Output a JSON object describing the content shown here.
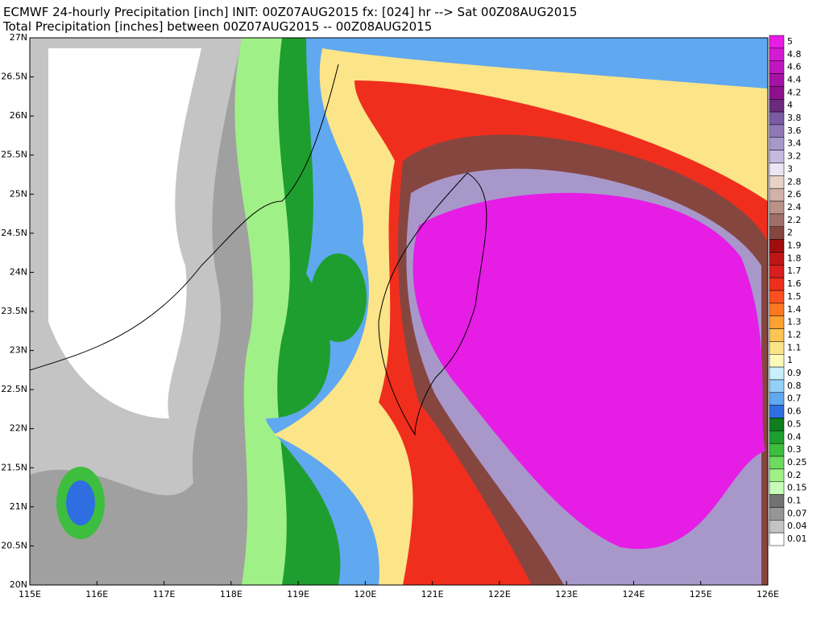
{
  "header": {
    "title": "ECMWF 24-hourly Precipitation [inch] INIT: 00Z07AUG2015 fx: [024] hr --> Sat 00Z08AUG2015",
    "subtitle": "Total Precipitation [inches] between 00Z07AUG2015 -- 00Z08AUG2015"
  },
  "map": {
    "lat_labels": [
      "27N",
      "26.5N",
      "26N",
      "25.5N",
      "25N",
      "24.5N",
      "24N",
      "23.5N",
      "23N",
      "22.5N",
      "22N",
      "21.5N",
      "21N",
      "20.5N",
      "20N"
    ],
    "lon_labels": [
      "115E",
      "116E",
      "117E",
      "118E",
      "119E",
      "120E",
      "121E",
      "122E",
      "123E",
      "124E",
      "125E",
      "126E"
    ]
  },
  "colorbar": {
    "levels": [
      {
        "label": "5",
        "color": "#e51de5"
      },
      {
        "label": "4.8",
        "color": "#d41ad4"
      },
      {
        "label": "4.6",
        "color": "#c016c0"
      },
      {
        "label": "4.4",
        "color": "#a612a6"
      },
      {
        "label": "4.2",
        "color": "#8e108e"
      },
      {
        "label": "4",
        "color": "#6c2a7c"
      },
      {
        "label": "3.8",
        "color": "#7a5aa2"
      },
      {
        "label": "3.6",
        "color": "#9078b6"
      },
      {
        "label": "3.4",
        "color": "#a898ca"
      },
      {
        "label": "3.2",
        "color": "#c6badf"
      },
      {
        "label": "3",
        "color": "#ece6f4"
      },
      {
        "label": "2.8",
        "color": "#e8d2c8"
      },
      {
        "label": "2.6",
        "color": "#d2b2a8"
      },
      {
        "label": "2.4",
        "color": "#ba9288"
      },
      {
        "label": "2.2",
        "color": "#a07068"
      },
      {
        "label": "2",
        "color": "#864640"
      },
      {
        "label": "1.9",
        "color": "#9e0e0e"
      },
      {
        "label": "1.8",
        "color": "#be1616"
      },
      {
        "label": "1.7",
        "color": "#d81e1e"
      },
      {
        "label": "1.6",
        "color": "#f02e1e"
      },
      {
        "label": "1.5",
        "color": "#f8501e"
      },
      {
        "label": "1.4",
        "color": "#fc7820"
      },
      {
        "label": "1.3",
        "color": "#fca032"
      },
      {
        "label": "1.2",
        "color": "#fcc452"
      },
      {
        "label": "1.1",
        "color": "#fce488"
      },
      {
        "label": "1",
        "color": "#fcfab8"
      },
      {
        "label": "0.9",
        "color": "#c8f0fc"
      },
      {
        "label": "0.8",
        "color": "#92d0f8"
      },
      {
        "label": "0.7",
        "color": "#60a8f0"
      },
      {
        "label": "0.6",
        "color": "#2e6ee0"
      },
      {
        "label": "0.5",
        "color": "#0e7e1e"
      },
      {
        "label": "0.4",
        "color": "#1e9e2e"
      },
      {
        "label": "0.3",
        "color": "#3ebe3e"
      },
      {
        "label": "0.25",
        "color": "#6eda5e"
      },
      {
        "label": "0.2",
        "color": "#a0f088"
      },
      {
        "label": "0.15",
        "color": "#c8fcb8"
      },
      {
        "label": "0.1",
        "color": "#727272"
      },
      {
        "label": "0.07",
        "color": "#969696"
      },
      {
        "label": "0.04",
        "color": "#c4c4c4"
      },
      {
        "label": "0.01",
        "color": "#ffffff"
      }
    ]
  }
}
